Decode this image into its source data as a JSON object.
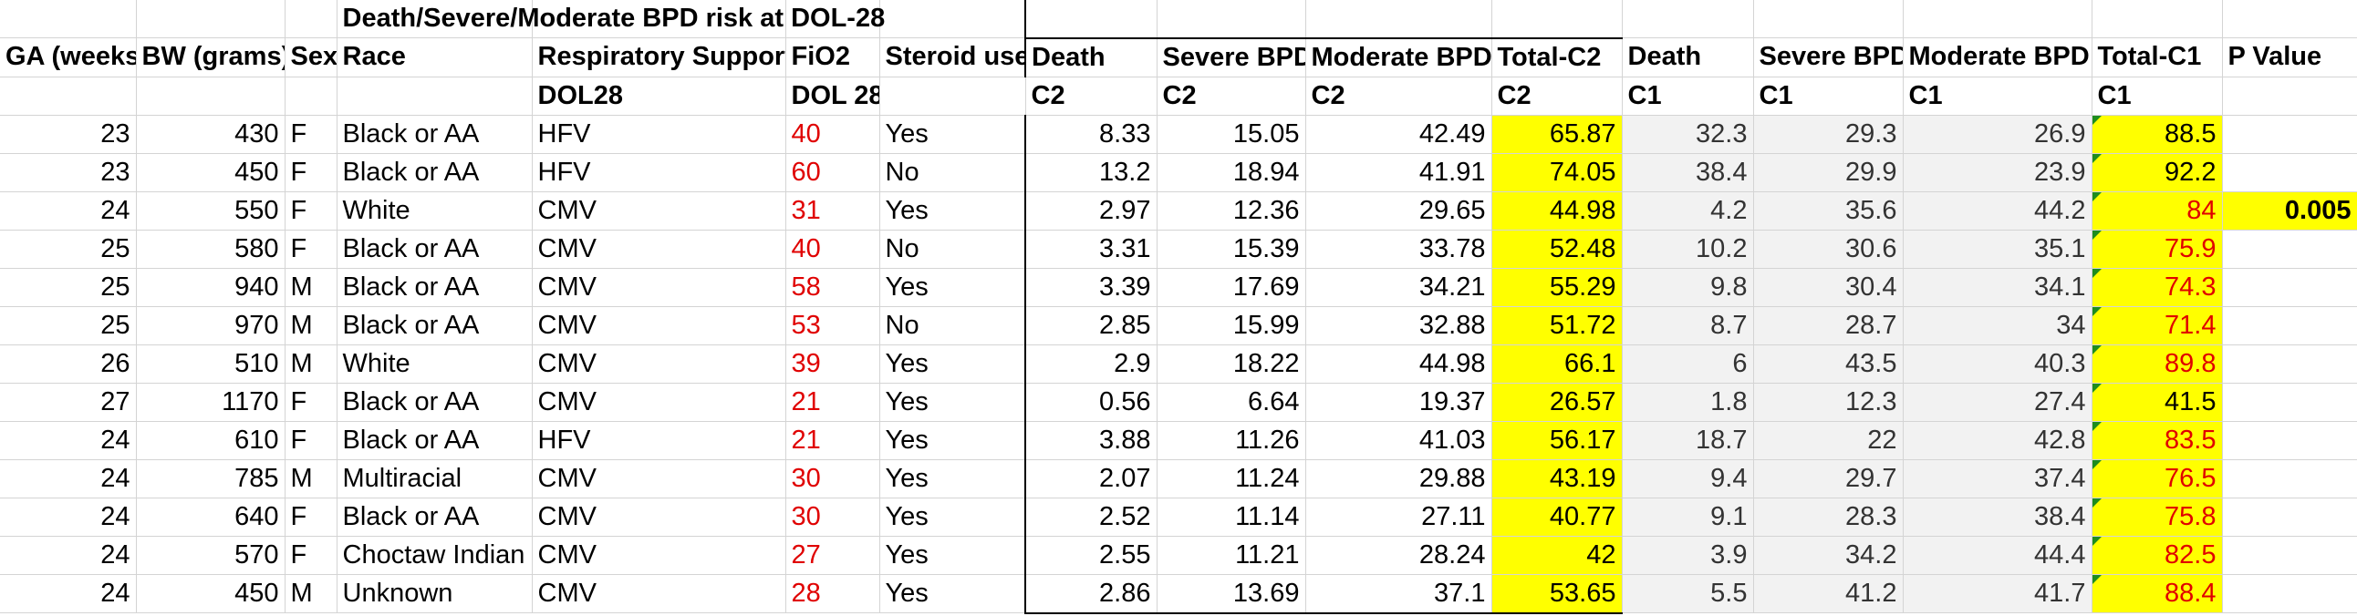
{
  "title_cell": "Death/Severe/Moderate BPD risk at DOL-28",
  "headers": [
    "GA (weeks",
    "BW (grams)",
    "Sex",
    "Race",
    "Respiratory Support",
    "FiO2",
    "Steroid use",
    "Death",
    "Severe BPD",
    "Moderate BPD",
    "Total-C2",
    "Death",
    "Severe BPD",
    "Moderate BPD",
    "Total-C1",
    "P Value"
  ],
  "subheaders": [
    "",
    "",
    "",
    "",
    "DOL28",
    "DOL 28",
    "",
    "C2",
    "C2",
    "C2",
    "C2",
    "C1",
    "C1",
    "C1",
    "C1",
    ""
  ],
  "p_value": "0.005",
  "rows": [
    [
      "23",
      "430",
      "F",
      "Black or AA",
      "HFV",
      "40",
      "Yes",
      "8.33",
      "15.05",
      "42.49",
      "65.87",
      "32.3",
      "29.3",
      "26.9",
      "88.5"
    ],
    [
      "23",
      "450",
      "F",
      "Black or AA",
      "HFV",
      "60",
      "No",
      "13.2",
      "18.94",
      "41.91",
      "74.05",
      "38.4",
      "29.9",
      "23.9",
      "92.2"
    ],
    [
      "24",
      "550",
      "F",
      "White",
      "CMV",
      "31",
      "Yes",
      "2.97",
      "12.36",
      "29.65",
      "44.98",
      "4.2",
      "35.6",
      "44.2",
      "84"
    ],
    [
      "25",
      "580",
      "F",
      "Black or AA",
      "CMV",
      "40",
      "No",
      "3.31",
      "15.39",
      "33.78",
      "52.48",
      "10.2",
      "30.6",
      "35.1",
      "75.9"
    ],
    [
      "25",
      "940",
      "M",
      "Black or AA",
      "CMV",
      "58",
      "Yes",
      "3.39",
      "17.69",
      "34.21",
      "55.29",
      "9.8",
      "30.4",
      "34.1",
      "74.3"
    ],
    [
      "25",
      "970",
      "M",
      "Black or AA",
      "CMV",
      "53",
      "No",
      "2.85",
      "15.99",
      "32.88",
      "51.72",
      "8.7",
      "28.7",
      "34",
      "71.4"
    ],
    [
      "26",
      "510",
      "M",
      "White",
      "CMV",
      "39",
      "Yes",
      "2.9",
      "18.22",
      "44.98",
      "66.1",
      "6",
      "43.5",
      "40.3",
      "89.8"
    ],
    [
      "27",
      "1170",
      "F",
      "Black or AA",
      "CMV",
      "21",
      "Yes",
      "0.56",
      "6.64",
      "19.37",
      "26.57",
      "1.8",
      "12.3",
      "27.4",
      "41.5"
    ],
    [
      "24",
      "610",
      "F",
      "Black or AA",
      "HFV",
      "21",
      "Yes",
      "3.88",
      "11.26",
      "41.03",
      "56.17",
      "18.7",
      "22",
      "42.8",
      "83.5"
    ],
    [
      "24",
      "785",
      "M",
      "Multiracial",
      "CMV",
      "30",
      "Yes",
      "2.07",
      "11.24",
      "29.88",
      "43.19",
      "9.4",
      "29.7",
      "37.4",
      "76.5"
    ],
    [
      "24",
      "640",
      "F",
      "Black or AA",
      "CMV",
      "30",
      "Yes",
      "2.52",
      "11.14",
      "27.11",
      "40.77",
      "9.1",
      "28.3",
      "38.4",
      "75.8"
    ],
    [
      "24",
      "570",
      "F",
      "Choctaw Indian",
      "CMV",
      "27",
      "Yes",
      "2.55",
      "11.21",
      "28.24",
      "42",
      "3.9",
      "34.2",
      "44.4",
      "82.5"
    ],
    [
      "24",
      "450",
      "M",
      "Unknown",
      "CMV",
      "28",
      "Yes",
      "2.86",
      "13.69",
      "37.1",
      "53.65",
      "5.5",
      "41.2",
      "41.7",
      "88.4"
    ]
  ],
  "total_c1_red_rows": [
    2,
    3,
    4,
    5,
    6,
    8,
    9,
    10,
    11,
    12
  ],
  "total_c1_black_rows": [
    0,
    1,
    7
  ],
  "colors": {
    "highlight": "#ffff00",
    "red_text": "#e00000",
    "c1_fill": "#f2f2f2",
    "comment_marker": "#1e8c1e"
  }
}
